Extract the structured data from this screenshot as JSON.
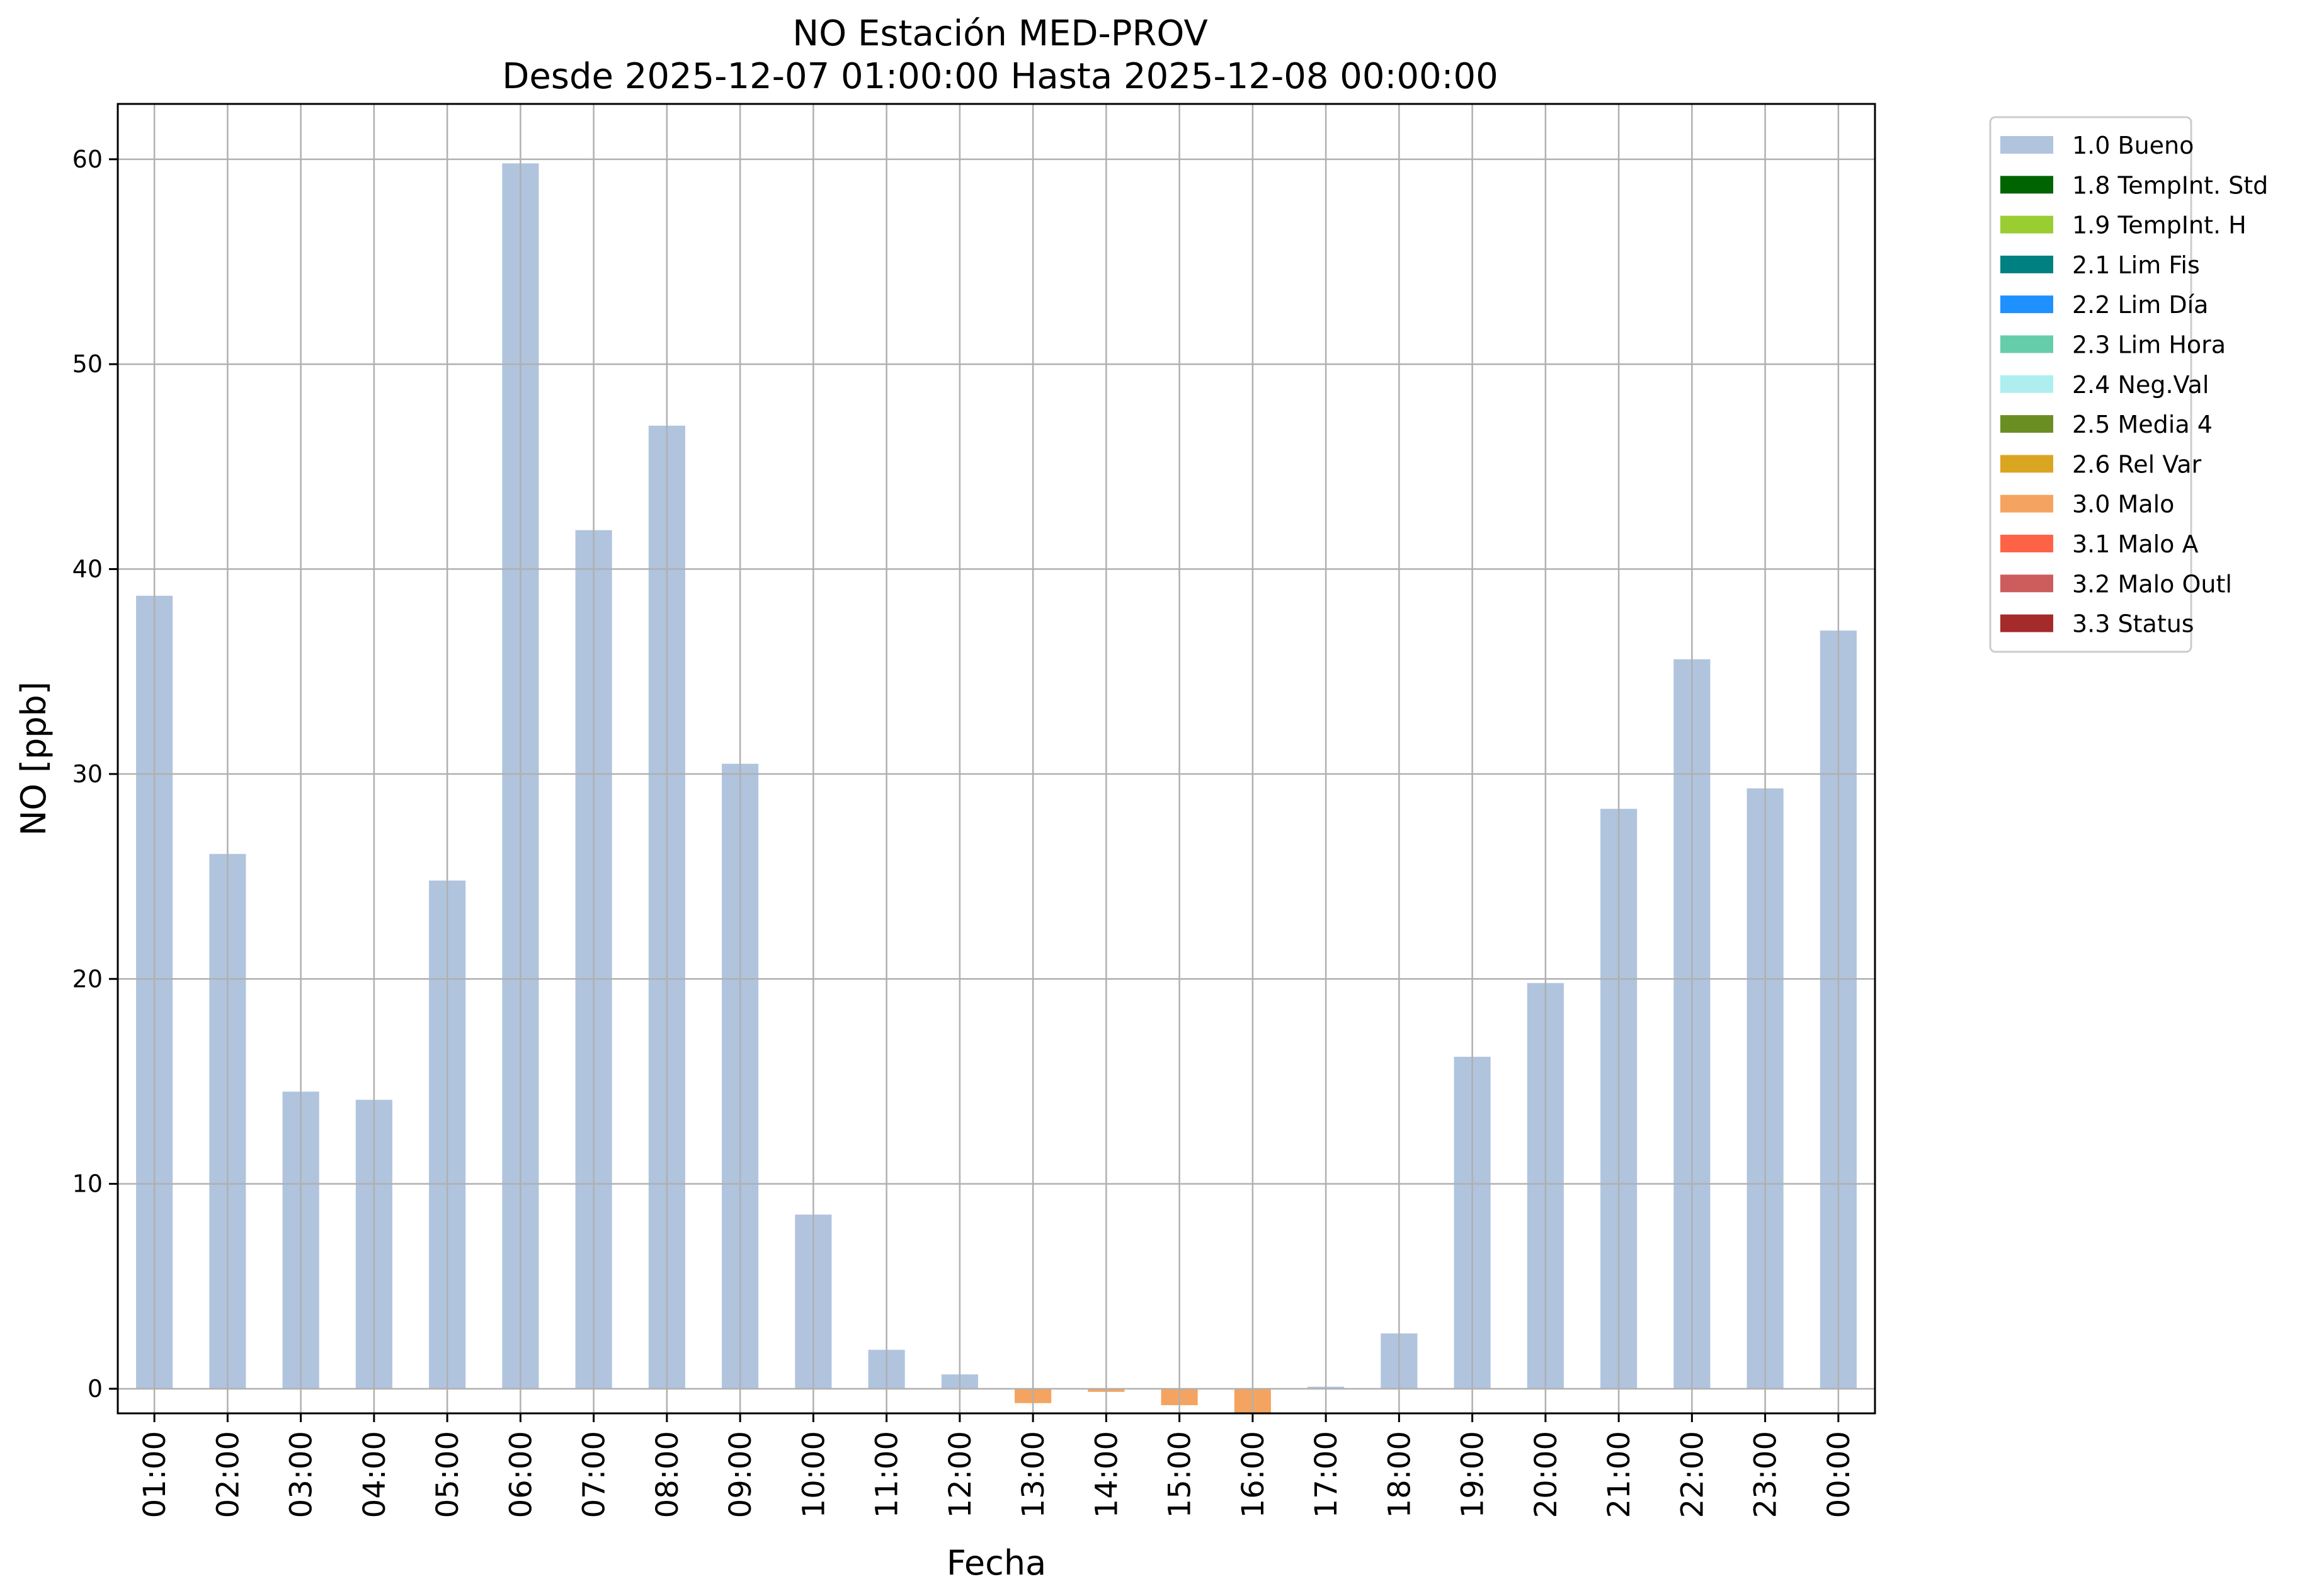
{
  "chart_data": {
    "type": "bar",
    "title": "NO Estación MED-PROV",
    "subtitle": "Desde 2025-12-07 01:00:00 Hasta 2025-12-08 00:00:00",
    "xlabel": "Fecha",
    "ylabel": "NO [ppb]",
    "ylim": [
      -1.2,
      62.7
    ],
    "yticks": [
      0,
      10,
      20,
      30,
      40,
      50,
      60
    ],
    "grid": true,
    "legend_position": "outside-right-top",
    "categories": [
      "01:00",
      "02:00",
      "03:00",
      "04:00",
      "05:00",
      "06:00",
      "07:00",
      "08:00",
      "09:00",
      "10:00",
      "11:00",
      "12:00",
      "13:00",
      "14:00",
      "15:00",
      "16:00",
      "17:00",
      "18:00",
      "19:00",
      "20:00",
      "21:00",
      "22:00",
      "23:00",
      "00:00"
    ],
    "values": [
      38.7,
      26.1,
      14.5,
      14.1,
      24.8,
      59.8,
      41.9,
      47.0,
      30.5,
      8.5,
      1.9,
      0.7,
      -0.7,
      -0.15,
      -0.8,
      -1.2,
      0.1,
      2.7,
      16.2,
      19.8,
      28.3,
      35.6,
      29.3,
      37.0
    ],
    "flags": [
      "1.0",
      "1.0",
      "1.0",
      "1.0",
      "1.0",
      "1.0",
      "1.0",
      "1.0",
      "1.0",
      "1.0",
      "1.0",
      "1.0",
      "3.0",
      "3.0",
      "3.0",
      "3.0",
      "1.0",
      "1.0",
      "1.0",
      "1.0",
      "1.0",
      "1.0",
      "1.0",
      "1.0"
    ],
    "legend": [
      {
        "code": "1.0",
        "label": "1.0 Bueno",
        "color": "#b0c4de"
      },
      {
        "code": "1.8",
        "label": "1.8 TempInt. Std",
        "color": "#006400"
      },
      {
        "code": "1.9",
        "label": "1.9 TempInt. H",
        "color": "#9acd32"
      },
      {
        "code": "2.1",
        "label": "2.1 Lim Fis",
        "color": "#008080"
      },
      {
        "code": "2.2",
        "label": "2.2 Lim Día",
        "color": "#1e90ff"
      },
      {
        "code": "2.3",
        "label": "2.3 Lim Hora",
        "color": "#66cdaa"
      },
      {
        "code": "2.4",
        "label": "2.4 Neg.Val",
        "color": "#afeeee"
      },
      {
        "code": "2.5",
        "label": "2.5 Media 4",
        "color": "#6b8e23"
      },
      {
        "code": "2.6",
        "label": "2.6 Rel Var",
        "color": "#daa520"
      },
      {
        "code": "3.0",
        "label": "3.0 Malo",
        "color": "#f4a460"
      },
      {
        "code": "3.1",
        "label": "3.1 Malo A",
        "color": "#ff6347"
      },
      {
        "code": "3.2",
        "label": "3.2 Malo Outl",
        "color": "#cd5c5c"
      },
      {
        "code": "3.3",
        "label": "3.3 Status",
        "color": "#a52a2a"
      }
    ]
  }
}
